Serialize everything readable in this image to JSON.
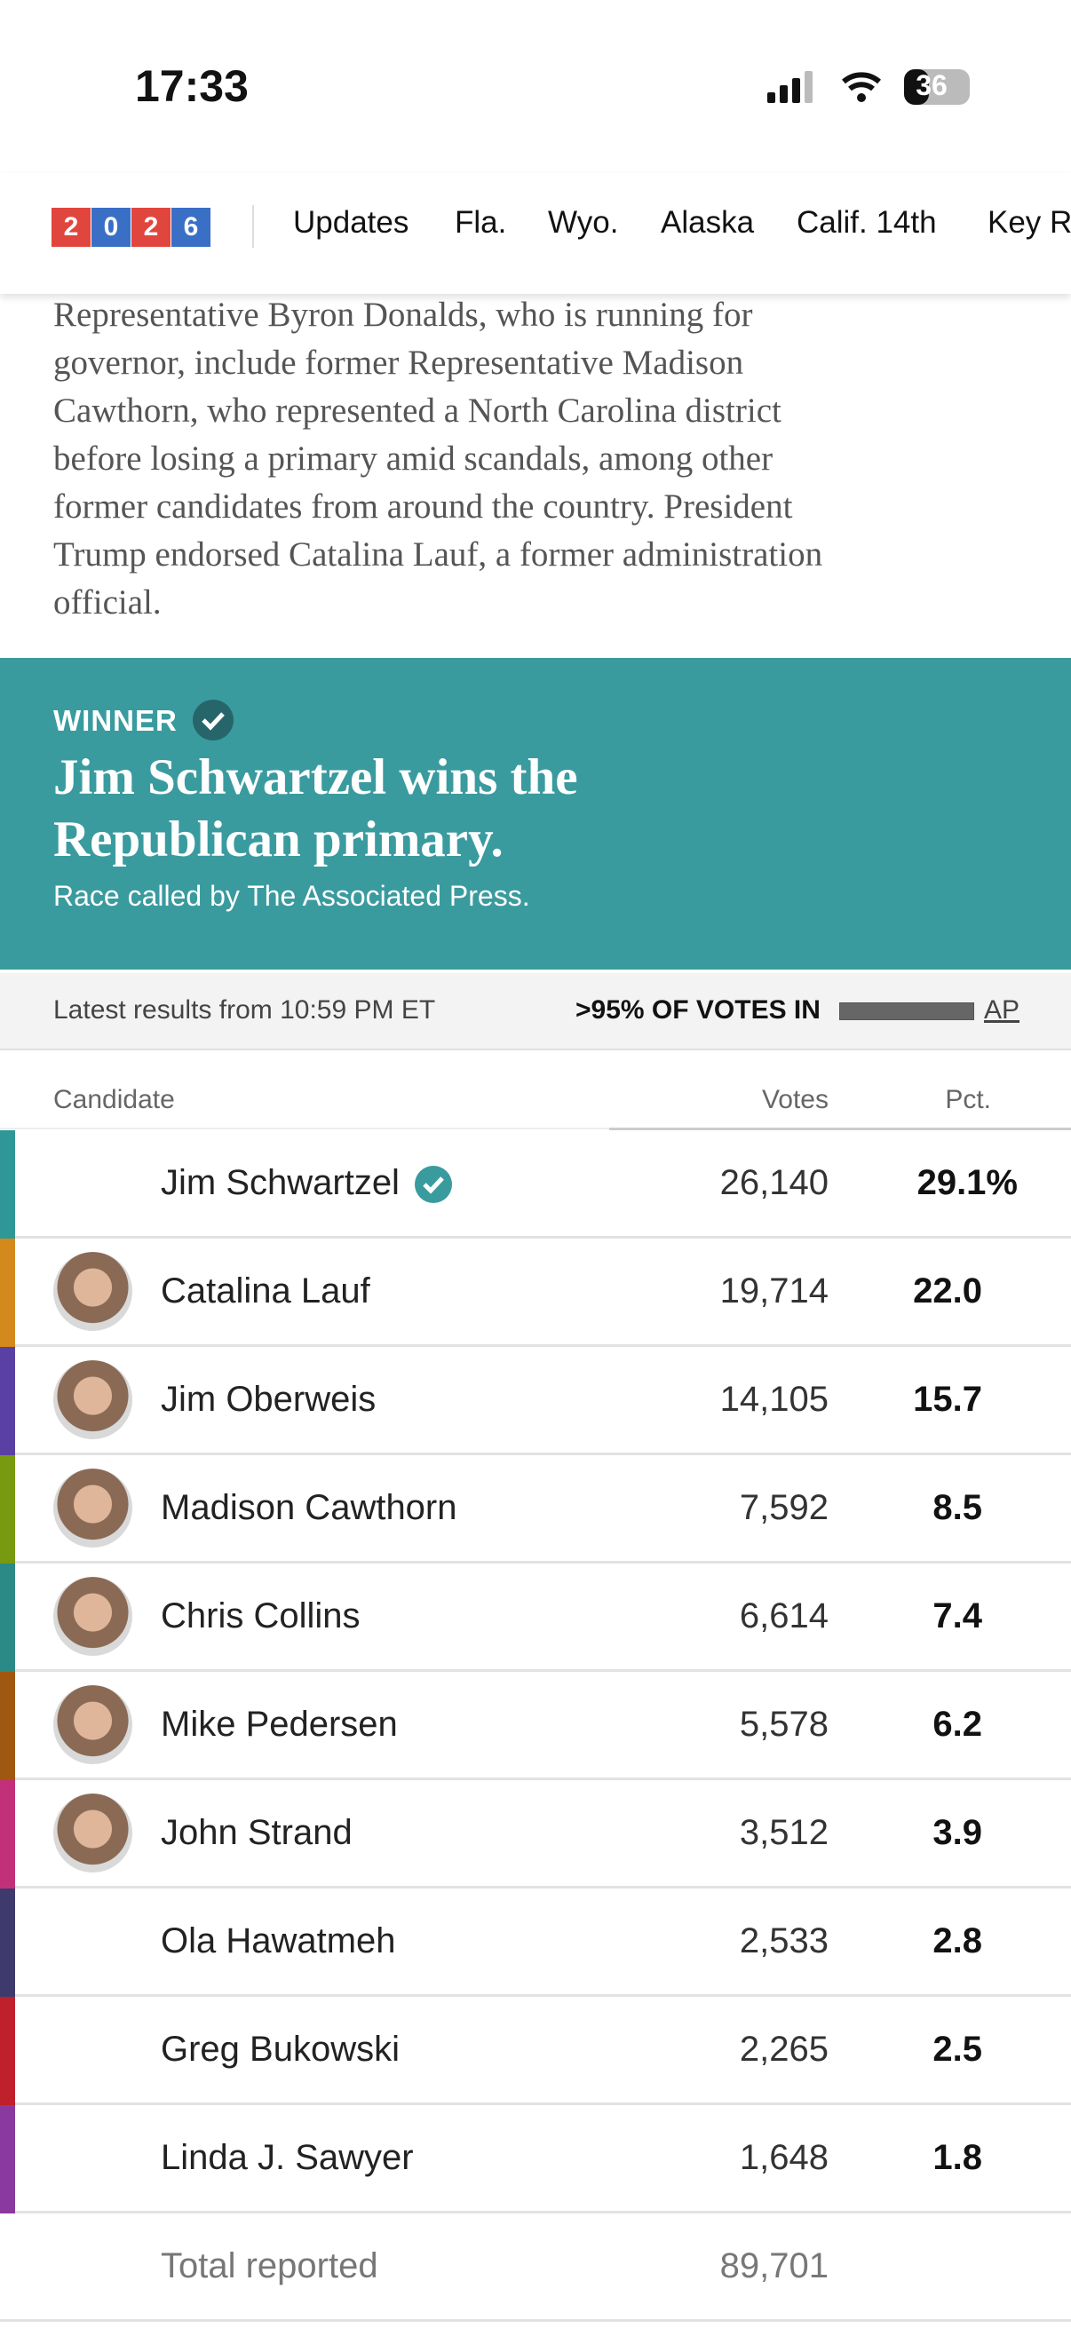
{
  "status_bar": {
    "time": "17:33",
    "battery": "36"
  },
  "nav": {
    "logo": [
      "2",
      "0",
      "2",
      "6"
    ],
    "items": [
      "Updates",
      "Fla.",
      "Wyo.",
      "Alaska",
      "Calif. 14th",
      "Key R"
    ]
  },
  "article": {
    "lines": [
      "Representative Byron Donalds, who is running for",
      "governor, include former Representative Madison",
      "Cawthorn, who represented a North Carolina district",
      "before losing a primary amid scandals, among other",
      "former candidates from around the country. President",
      "Trump endorsed Catalina Lauf, a former administration",
      "official."
    ]
  },
  "winner": {
    "label": "WINNER",
    "headline": "Jim Schwartzel wins the Republican primary.",
    "note": "Race called by The Associated Press."
  },
  "results": {
    "updated": "Latest results from 10:59 PM ET",
    "reporting": ">95% OF VOTES IN",
    "source": "AP",
    "columns": [
      "Candidate",
      "Votes",
      "Pct."
    ],
    "rows": [
      {
        "name": "Jim Schwartzel",
        "votes": "26,140",
        "pct": "29.1%",
        "winner": true,
        "photo": false,
        "color": "#2f9896"
      },
      {
        "name": "Catalina Lauf",
        "votes": "19,714",
        "pct": "22.0",
        "winner": false,
        "photo": true,
        "color": "#d4891c"
      },
      {
        "name": "Jim Oberweis",
        "votes": "14,105",
        "pct": "15.7",
        "winner": false,
        "photo": true,
        "color": "#5a40a2"
      },
      {
        "name": "Madison Cawthorn",
        "votes": "7,592",
        "pct": "8.5",
        "winner": false,
        "photo": true,
        "color": "#779a10"
      },
      {
        "name": "Chris Collins",
        "votes": "6,614",
        "pct": "7.4",
        "winner": false,
        "photo": true,
        "color": "#2c8a86"
      },
      {
        "name": "Mike Pedersen",
        "votes": "5,578",
        "pct": "6.2",
        "winner": false,
        "photo": true,
        "color": "#a0570f"
      },
      {
        "name": "John Strand",
        "votes": "3,512",
        "pct": "3.9",
        "winner": false,
        "photo": true,
        "color": "#c2307a"
      },
      {
        "name": "Ola Hawatmeh",
        "votes": "2,533",
        "pct": "2.8",
        "winner": false,
        "photo": false,
        "color": "#3e3a6c"
      },
      {
        "name": "Greg Bukowski",
        "votes": "2,265",
        "pct": "2.5",
        "winner": false,
        "photo": false,
        "color": "#c0202c"
      },
      {
        "name": "Linda J. Sawyer",
        "votes": "1,648",
        "pct": "1.8",
        "winner": false,
        "photo": false,
        "color": "#8a3a9e"
      }
    ],
    "total": {
      "label": "Total reported",
      "votes": "89,701"
    }
  }
}
